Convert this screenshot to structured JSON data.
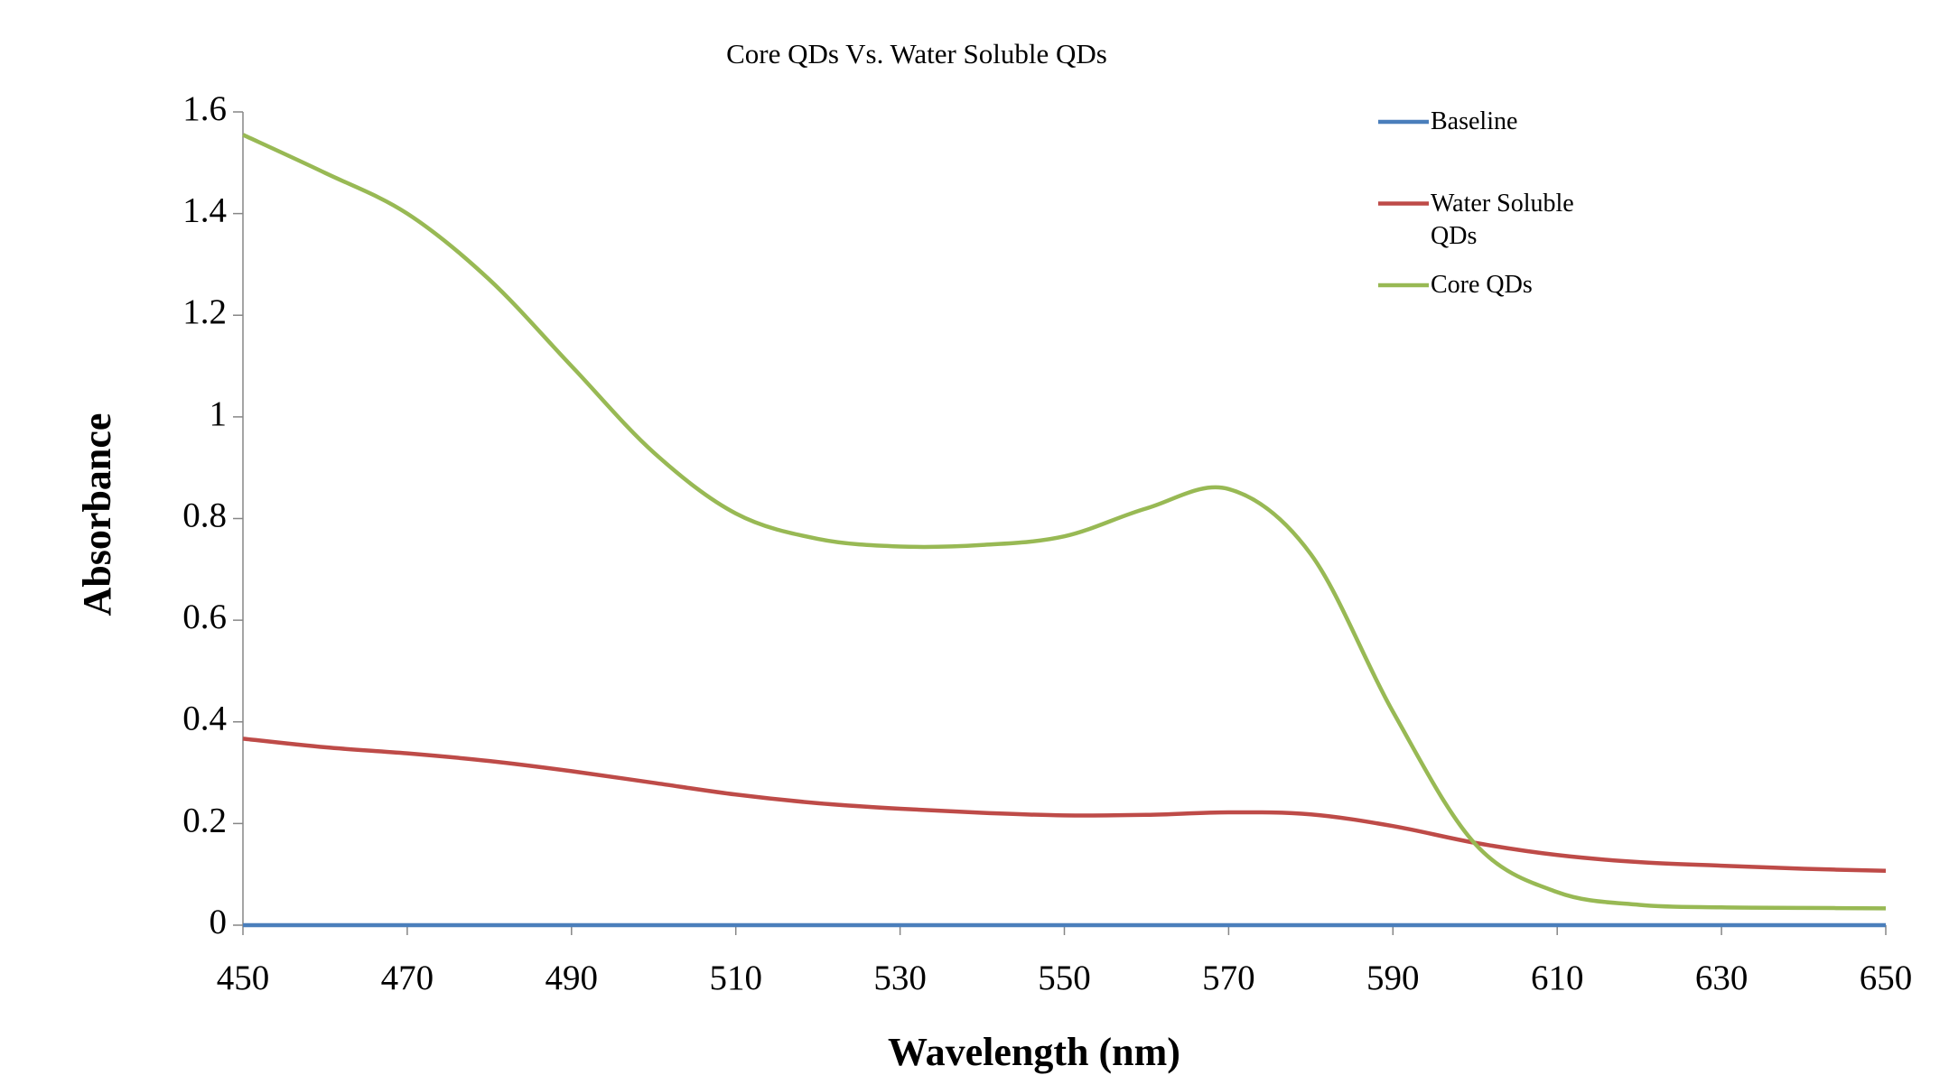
{
  "chart_data": {
    "type": "line",
    "title": "Core QDs Vs. Water Soluble QDs",
    "x_label": "Wavelength (nm)",
    "y_label": "Absorbance",
    "x": [
      450,
      460,
      470,
      480,
      490,
      500,
      510,
      520,
      530,
      540,
      550,
      560,
      570,
      580,
      590,
      600,
      610,
      620,
      630,
      640,
      650
    ],
    "series": [
      {
        "name": "Baseline",
        "color": "#4a7ebb",
        "values": [
          0,
          0,
          0,
          0,
          0,
          0,
          0,
          0,
          0,
          0,
          0,
          0,
          0,
          0,
          0,
          0,
          0,
          0,
          0,
          0,
          0
        ]
      },
      {
        "name": "Water Soluble QDs",
        "color": "#be4b48",
        "values": [
          0.367,
          0.35,
          0.338,
          0.323,
          0.303,
          0.28,
          0.257,
          0.24,
          0.229,
          0.221,
          0.216,
          0.217,
          0.222,
          0.218,
          0.195,
          0.162,
          0.138,
          0.124,
          0.117,
          0.111,
          0.107
        ]
      },
      {
        "name": "Core QDs",
        "color": "#98b954",
        "values": [
          1.555,
          1.48,
          1.4,
          1.27,
          1.1,
          0.93,
          0.81,
          0.76,
          0.745,
          0.748,
          0.765,
          0.82,
          0.858,
          0.73,
          0.42,
          0.16,
          0.065,
          0.04,
          0.035,
          0.034,
          0.033
        ]
      }
    ],
    "xlim": [
      450,
      650
    ],
    "xticks": [
      450,
      470,
      490,
      510,
      530,
      550,
      570,
      590,
      610,
      630,
      650
    ],
    "ylim": [
      0,
      1.6
    ],
    "yticks": [
      0,
      0.2,
      0.4,
      0.6,
      0.8,
      1,
      1.2,
      1.4,
      1.6
    ],
    "grid": false,
    "legend": "upper right"
  }
}
